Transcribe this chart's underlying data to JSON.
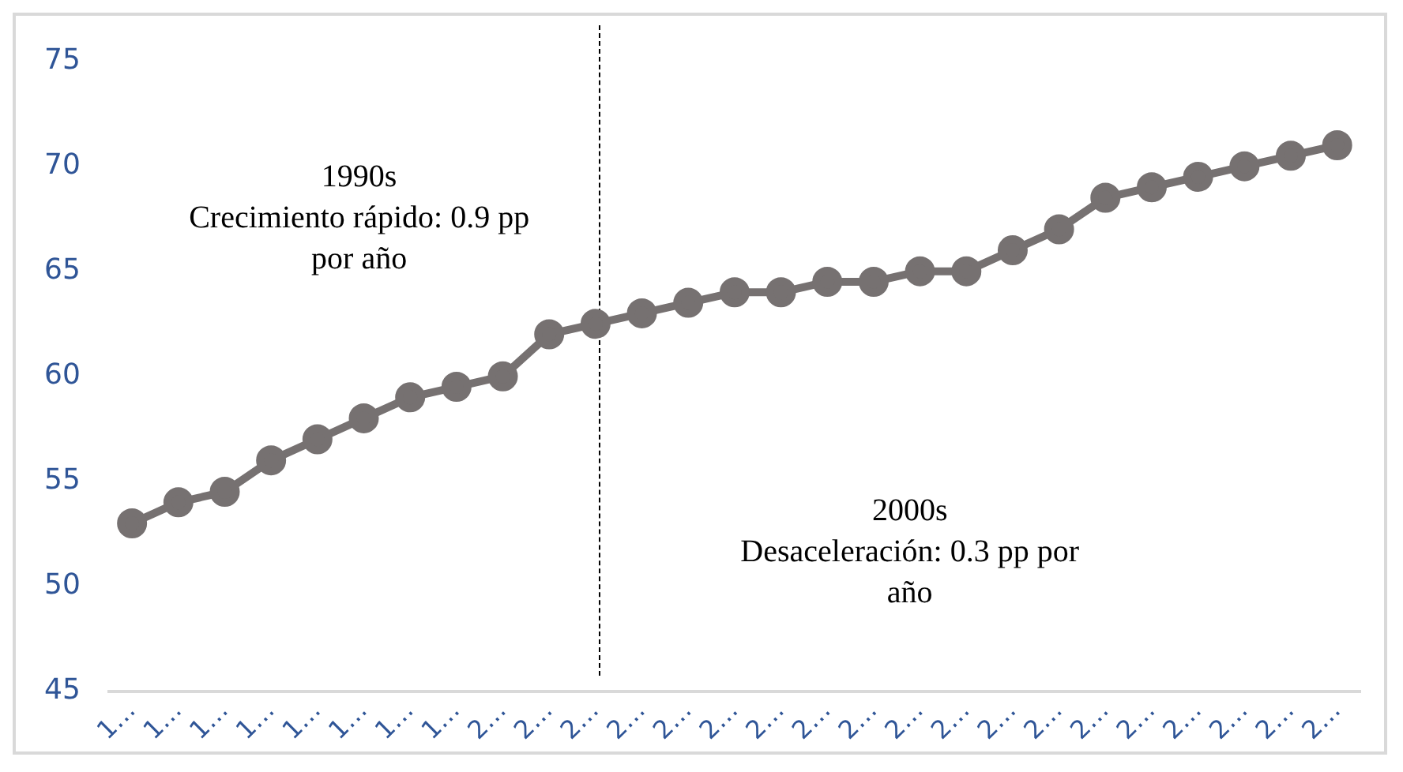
{
  "chart_data": {
    "type": "line",
    "categories": [
      "1…",
      "1…",
      "1…",
      "1…",
      "1…",
      "1…",
      "1…",
      "1…",
      "2…",
      "2…",
      "2…",
      "2…",
      "2…",
      "2…",
      "2…",
      "2…",
      "2…",
      "2…",
      "2…",
      "2…",
      "2…",
      "2…",
      "2…",
      "2…",
      "2…",
      "2…",
      "2…"
    ],
    "series": [
      {
        "color": "#767171",
        "values": [
          53,
          54,
          54.5,
          56,
          57,
          58,
          59,
          59.5,
          60,
          62,
          62.5,
          63,
          63.5,
          64,
          64,
          64.5,
          64.5,
          65,
          65,
          66,
          67,
          68.5,
          69,
          69.5,
          70,
          70.5,
          71
        ]
      }
    ],
    "ylim": [
      45,
      75
    ],
    "yticks": [
      45,
      50,
      55,
      60,
      65,
      70,
      75
    ],
    "grid": false,
    "legend": false,
    "marker": "circle",
    "line_style": "solid",
    "annotations": [
      "1990s\nCrecimiento rápido: 0.9 pp\npor año",
      "2000s\nDesaceleración: 0.3 pp por\naño"
    ]
  }
}
